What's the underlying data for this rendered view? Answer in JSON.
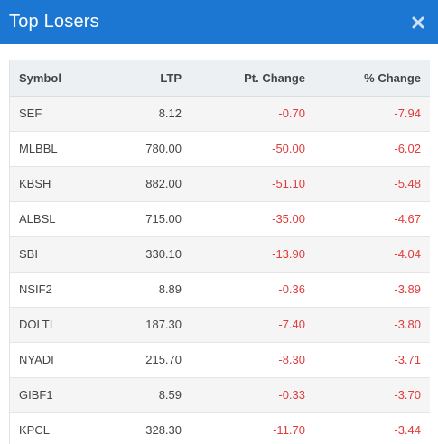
{
  "dialog": {
    "title": "Top Losers",
    "close_icon": "close-icon"
  },
  "colors": {
    "header_bg": "#1c77d3",
    "negative": "#e03b3b"
  },
  "table": {
    "columns": [
      "Symbol",
      "LTP",
      "Pt. Change",
      "% Change"
    ],
    "rows": [
      {
        "symbol": "SEF",
        "ltp": "8.12",
        "pt_change": "-0.70",
        "pct_change": "-7.94"
      },
      {
        "symbol": "MLBBL",
        "ltp": "780.00",
        "pt_change": "-50.00",
        "pct_change": "-6.02"
      },
      {
        "symbol": "KBSH",
        "ltp": "882.00",
        "pt_change": "-51.10",
        "pct_change": "-5.48"
      },
      {
        "symbol": "ALBSL",
        "ltp": "715.00",
        "pt_change": "-35.00",
        "pct_change": "-4.67"
      },
      {
        "symbol": "SBI",
        "ltp": "330.10",
        "pt_change": "-13.90",
        "pct_change": "-4.04"
      },
      {
        "symbol": "NSIF2",
        "ltp": "8.89",
        "pt_change": "-0.36",
        "pct_change": "-3.89"
      },
      {
        "symbol": "DOLTI",
        "ltp": "187.30",
        "pt_change": "-7.40",
        "pct_change": "-3.80"
      },
      {
        "symbol": "NYADI",
        "ltp": "215.70",
        "pt_change": "-8.30",
        "pct_change": "-3.71"
      },
      {
        "symbol": "GIBF1",
        "ltp": "8.59",
        "pt_change": "-0.33",
        "pct_change": "-3.70"
      },
      {
        "symbol": "KPCL",
        "ltp": "328.30",
        "pt_change": "-11.70",
        "pct_change": "-3.44"
      }
    ]
  }
}
